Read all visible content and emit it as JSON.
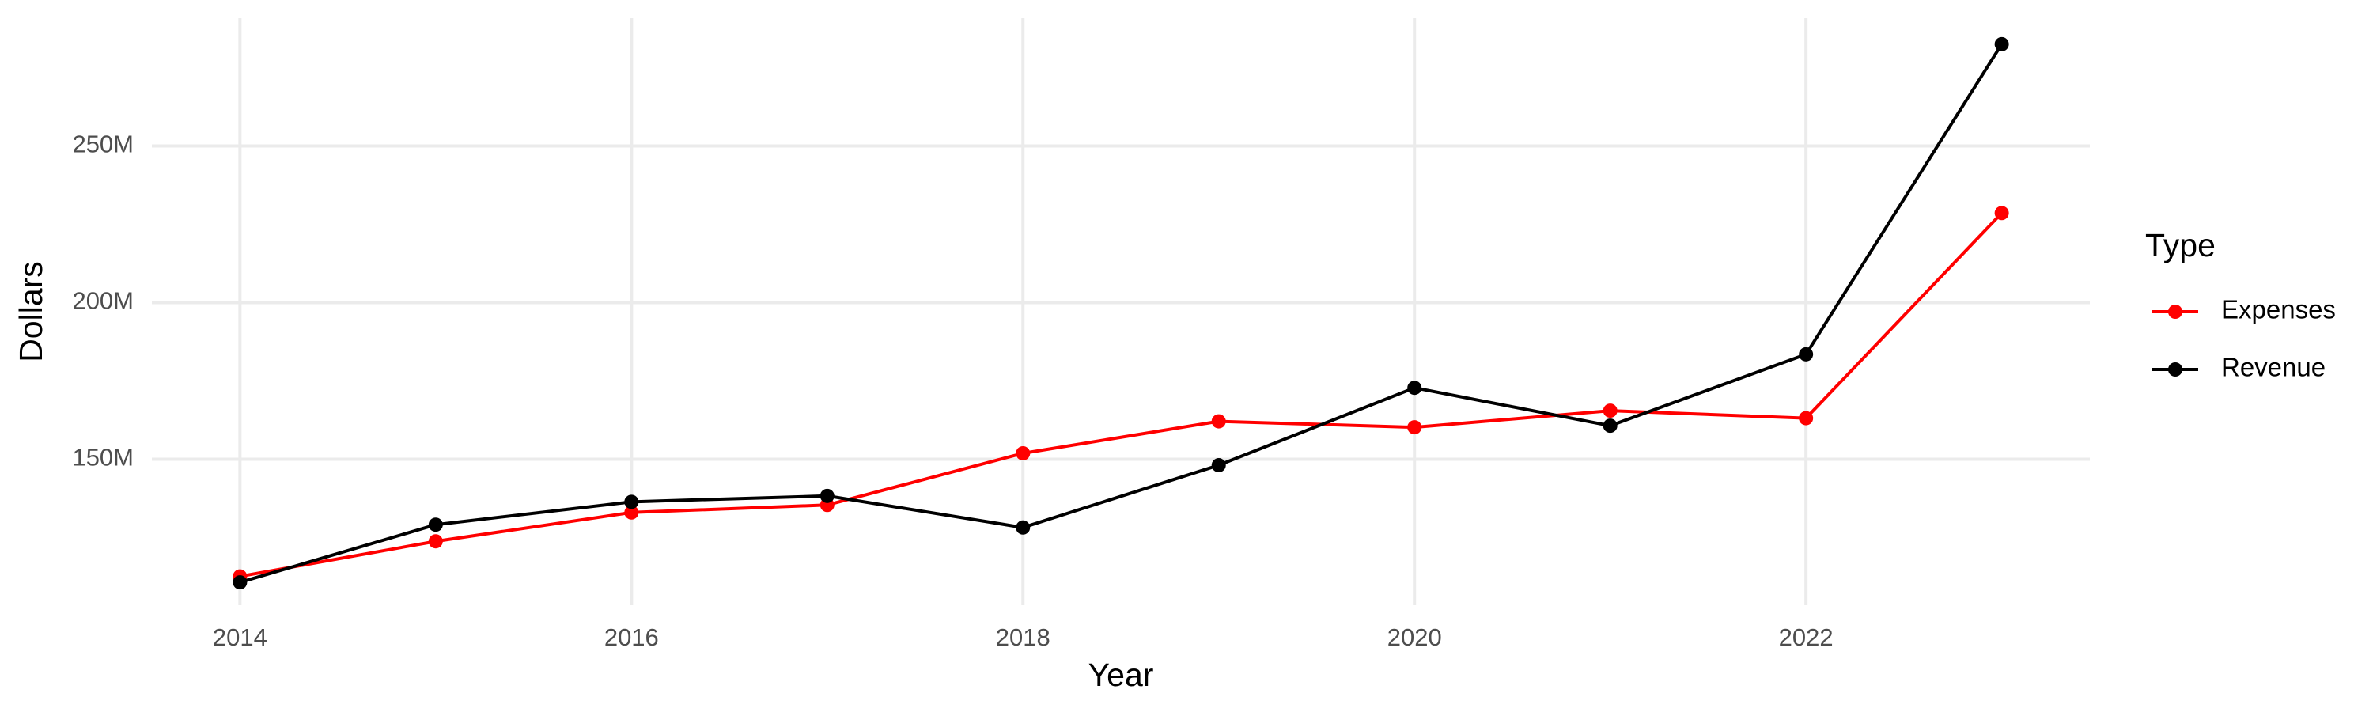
{
  "chart_data": {
    "type": "line",
    "x_label": "Year",
    "y_label": "Dollars",
    "x": [
      2014,
      2015,
      2016,
      2017,
      2018,
      2019,
      2020,
      2021,
      2022,
      2023
    ],
    "series": [
      {
        "name": "Expenses",
        "color": "#ff0000",
        "values": [
          112600000,
          123800000,
          133000000,
          135400000,
          151900000,
          162100000,
          160200000,
          165500000,
          163100000,
          228600000
        ]
      },
      {
        "name": "Revenue",
        "color": "#000000",
        "values": [
          110700000,
          129100000,
          136400000,
          138300000,
          128200000,
          148100000,
          172800000,
          160700000,
          183500000,
          282500000
        ]
      }
    ],
    "legend_title": "Type",
    "legend_position": "right",
    "xlim": [
      2013.55,
      2023.45
    ],
    "xticks": [
      2014,
      2016,
      2018,
      2020,
      2022
    ],
    "ylim": [
      103400000,
      290800000
    ],
    "yticks": [
      {
        "value": 150000000,
        "label": "150M"
      },
      {
        "value": 200000000,
        "label": "200M"
      },
      {
        "value": 250000000,
        "label": "250M"
      }
    ],
    "grid": true
  }
}
